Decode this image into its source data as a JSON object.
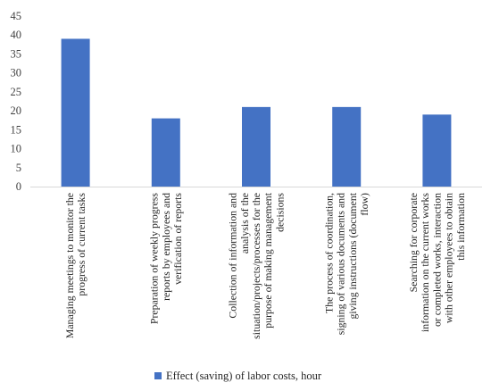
{
  "chart_data": {
    "type": "bar",
    "categories": [
      [
        "Managing meetings to monitor the",
        "progress of current tasks"
      ],
      [
        "Preparation of weekly progress",
        "reports by employees and",
        "verification of reports"
      ],
      [
        "Collection of information and",
        "analysis of the",
        "situation/projects/processes for the",
        "purpose of making management",
        "decisions"
      ],
      [
        "The process of coordination,",
        "signing of various documents and",
        "giving instructions (document",
        "flow)"
      ],
      [
        "Searching for corporate",
        "information on the current works",
        "or completed works, interaction",
        "with other employees to obtain",
        "this information"
      ]
    ],
    "series": [
      {
        "name": "Effect (saving) of labor costs, hour",
        "values": [
          39,
          18,
          21,
          21,
          19
        ]
      }
    ],
    "ylim": [
      0,
      45
    ],
    "yticks": [
      0,
      5,
      10,
      15,
      20,
      25,
      30,
      35,
      40,
      45
    ],
    "grid": false,
    "legend": "bottom",
    "bar_color": "#4472C4",
    "title": "",
    "xlabel": "",
    "ylabel": ""
  }
}
